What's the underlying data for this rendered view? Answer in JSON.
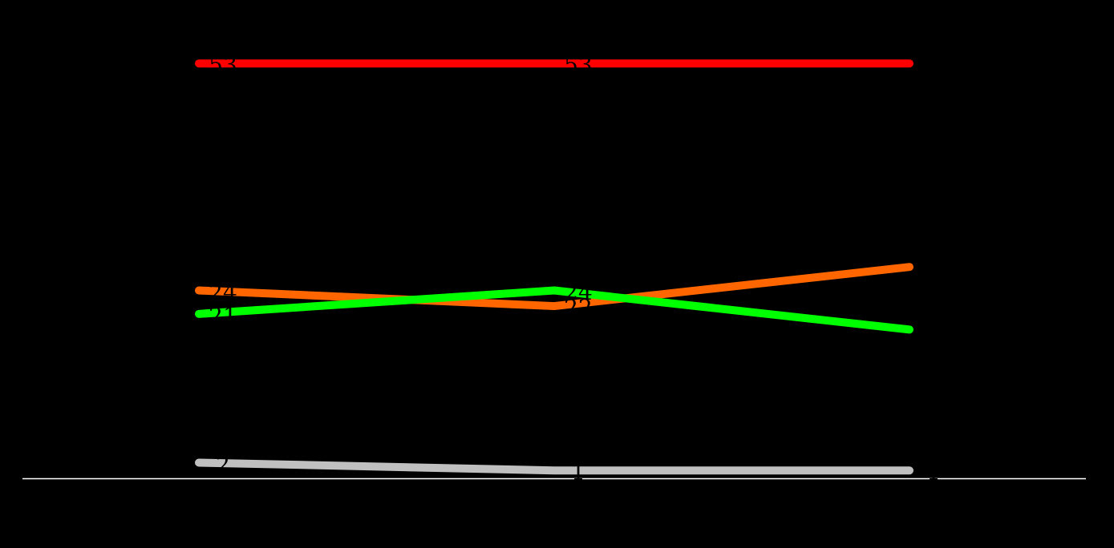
{
  "chart_data": {
    "type": "line",
    "categories": [
      null,
      null,
      null
    ],
    "series": [
      {
        "color": "#ff0000",
        "values": [
          53,
          53,
          53
        ]
      },
      {
        "color": "#ff6600",
        "values": [
          24,
          22,
          27
        ]
      },
      {
        "color": "#00ff00",
        "values": [
          21,
          24,
          19
        ]
      },
      {
        "color": "#c0c0c0",
        "values": [
          2,
          1,
          1
        ]
      }
    ],
    "ylim": [
      0,
      60
    ]
  }
}
